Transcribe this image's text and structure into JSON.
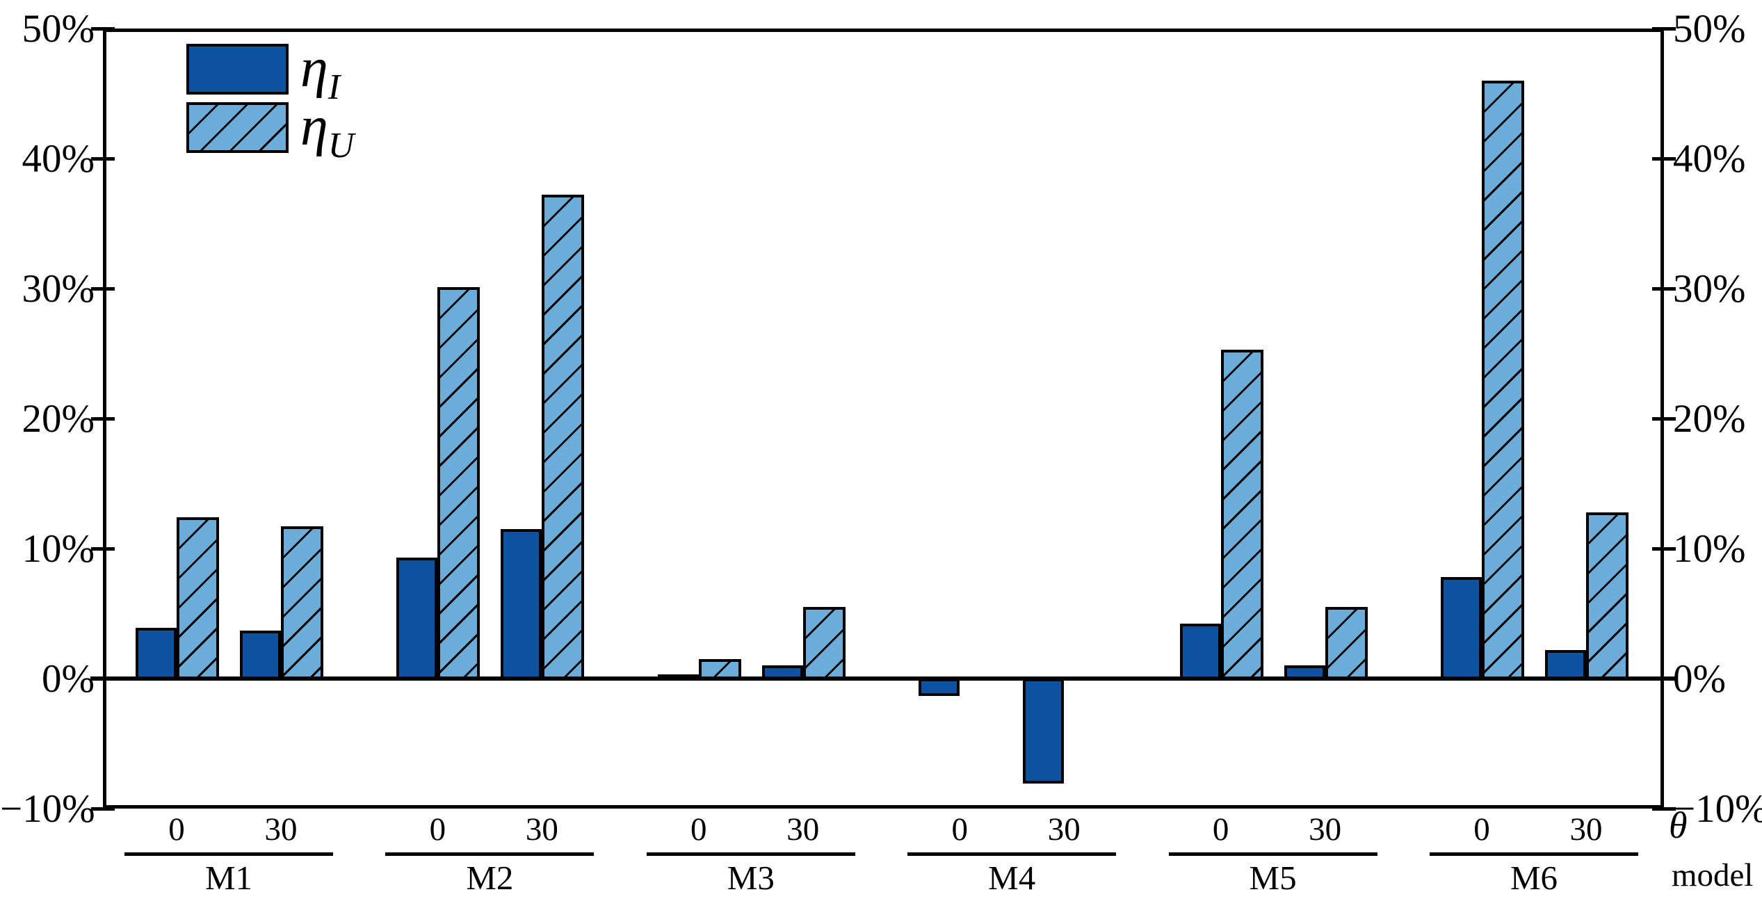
{
  "page": {
    "background": "#ffffff"
  },
  "legend": {
    "items": [
      {
        "symbol": "η",
        "subscript": "I",
        "swatch": "solid"
      },
      {
        "symbol": "η",
        "subscript": "U",
        "swatch": "hatched"
      }
    ]
  },
  "axes": {
    "y_left_labels": [
      "50%",
      "40%",
      "30%",
      "20%",
      "10%",
      "0%",
      "−10%"
    ],
    "y_right_labels": [
      "50%",
      "40%",
      "30%",
      "20%",
      "10%",
      "0%",
      "−10%"
    ],
    "x_sub_axis_title": "θ",
    "x_group_axis_title": "model"
  },
  "chart_data": {
    "type": "bar",
    "title": "",
    "groups": [
      "M1",
      "M2",
      "M3",
      "M4",
      "M5",
      "M6"
    ],
    "sub_categories": [
      "0",
      "30"
    ],
    "unit": "%",
    "ylim": [
      -10,
      50
    ],
    "ytick_step": 10,
    "yticks": [
      50,
      40,
      30,
      20,
      10,
      0,
      -10
    ],
    "grid": false,
    "legend_position": "top-left",
    "series": [
      {
        "name": "η_I",
        "pattern": "solid",
        "color": "#0d53a0",
        "values": [
          [
            3.9,
            3.7
          ],
          [
            9.3,
            11.5
          ],
          [
            0.3,
            1.0
          ],
          [
            -1.2,
            -7.9
          ],
          [
            4.2,
            1.0
          ],
          [
            7.8,
            2.2
          ]
        ]
      },
      {
        "name": "η_U",
        "pattern": "hatched",
        "color": "#6cacd8",
        "hatch_line_color": "#000000",
        "values": [
          [
            12.4,
            11.7
          ],
          [
            30.1,
            37.2
          ],
          [
            1.5,
            5.5
          ],
          [
            0.0,
            0.0
          ],
          [
            25.3,
            5.5
          ],
          [
            46.0,
            12.8
          ]
        ]
      }
    ]
  }
}
